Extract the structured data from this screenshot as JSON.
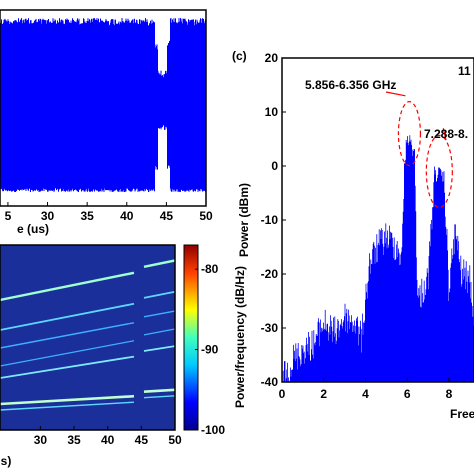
{
  "colors": {
    "signal": "#0000ff",
    "annotation": "#ff0000",
    "spectrogram_bg": "#1a2f9a"
  },
  "chart_data": [
    {
      "panel": "top-left",
      "type": "area",
      "xlabel": "e (us)",
      "x_ticks": [
        "5",
        "30",
        "35",
        "40",
        "45",
        "50"
      ],
      "xlim": [
        24,
        50
      ],
      "gap_near_x": 44.5,
      "grid": false
    },
    {
      "panel": "bottom-left",
      "type": "heatmap",
      "x_ticks": [
        "30",
        "35",
        "40",
        "45",
        "50"
      ],
      "x_label_fragment": "s)",
      "xlim": [
        24,
        50
      ],
      "colorbar": {
        "label": "Power/frequency (dB/Hz)",
        "ticks": [
          "-80",
          "-90",
          "-100"
        ],
        "range": [
          -100,
          -77
        ]
      },
      "gap_near_x": 44.5
    },
    {
      "panel": "right",
      "panel_label": "(c)",
      "type": "bar",
      "ylabel": "Power (dBm)",
      "xlabel_fragment": "Free",
      "y_ticks": [
        "20",
        "10",
        "0",
        "-10",
        "-20",
        "-30",
        "-40"
      ],
      "x_ticks": [
        "0",
        "2",
        "4",
        "6",
        "8"
      ],
      "xlim": [
        0,
        9.2
      ],
      "ylim": [
        -40,
        20
      ],
      "annotations": [
        "5.856-6.356 GHz",
        "7.288-8.",
        "11"
      ],
      "highlight_bands": [
        [
          5.856,
          6.356
        ],
        [
          7.288,
          7.788
        ]
      ],
      "spectrum_envelope": {
        "freq": [
          0,
          0.5,
          1.0,
          1.5,
          2.0,
          2.5,
          3.0,
          3.5,
          3.8,
          4.2,
          4.6,
          5.0,
          5.5,
          5.75,
          5.856,
          6.0,
          6.356,
          6.5,
          7.0,
          7.288,
          7.5,
          7.788,
          8.0,
          8.3,
          8.6,
          9.0,
          9.2
        ],
        "power": [
          -37,
          -33,
          -31,
          -30,
          -26,
          -28,
          -25,
          -26,
          -29,
          -15,
          -12,
          -10,
          -12,
          -14,
          1,
          7,
          4,
          -22,
          -18,
          0,
          0,
          -1,
          -20,
          -9,
          -17,
          -18,
          -25
        ]
      }
    }
  ]
}
